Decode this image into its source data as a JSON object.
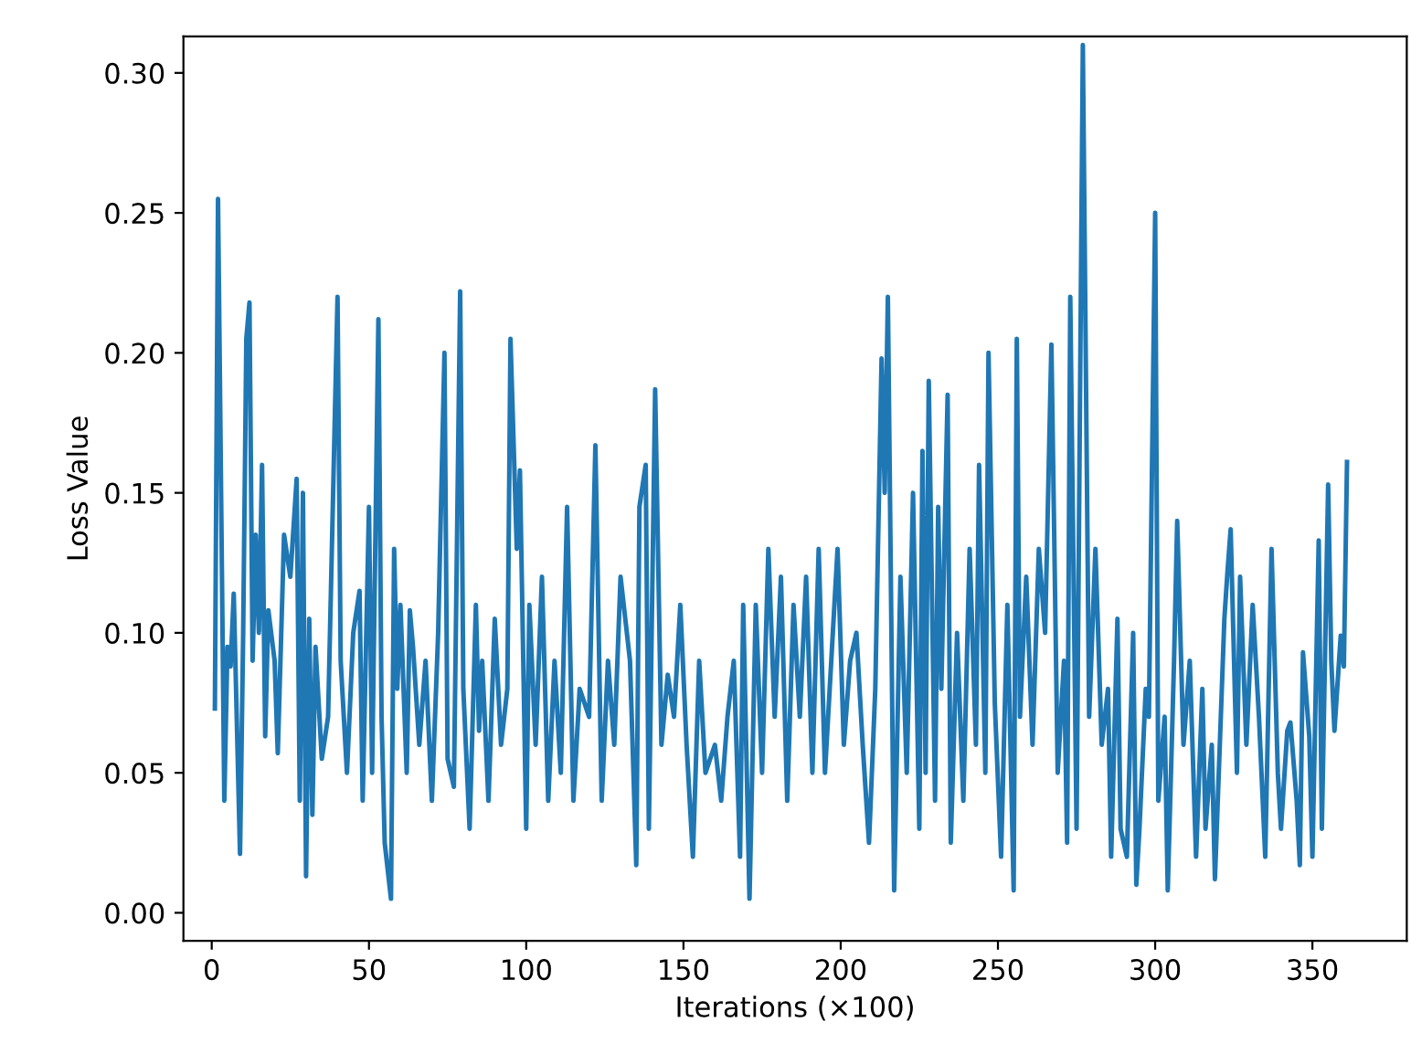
{
  "chart_data": {
    "type": "line",
    "xlabel": "Iterations (×100)",
    "ylabel": "Loss Value",
    "xlim": [
      -9,
      380
    ],
    "ylim": [
      -0.01,
      0.313
    ],
    "xticks": [
      0,
      50,
      100,
      150,
      200,
      250,
      300,
      350
    ],
    "yticks": [
      {
        "value": 0,
        "label": "0.00"
      },
      {
        "value": 0.05,
        "label": "0.05"
      },
      {
        "value": 0.1,
        "label": "0.10"
      },
      {
        "value": 0.15,
        "label": "0.15"
      },
      {
        "value": 0.2,
        "label": "0.20"
      },
      {
        "value": 0.25,
        "label": "0.25"
      },
      {
        "value": 0.3,
        "label": "0.30"
      }
    ],
    "grid": false,
    "marker": "none",
    "line_style": "solid",
    "series": [
      {
        "color": "#1f77b4",
        "x": [
          1,
          2,
          4,
          5,
          6,
          7,
          9,
          10,
          11,
          12,
          13,
          14,
          15,
          16,
          17,
          18,
          20,
          21,
          23,
          25,
          27,
          28,
          29,
          30,
          31,
          32,
          33,
          35,
          37,
          40,
          41,
          43,
          45,
          47,
          48,
          50,
          51,
          53,
          54,
          55,
          57,
          58,
          59,
          60,
          62,
          63,
          64,
          66,
          68,
          70,
          72,
          74,
          75,
          77,
          79,
          80,
          82,
          84,
          85,
          86,
          88,
          90,
          92,
          94,
          95,
          97,
          98,
          100,
          101,
          103,
          105,
          107,
          109,
          111,
          113,
          115,
          117,
          120,
          122,
          124,
          126,
          128,
          130,
          133,
          135,
          136,
          138,
          139,
          141,
          143,
          145,
          147,
          149,
          151,
          153,
          155,
          157,
          160,
          162,
          164,
          166,
          168,
          169,
          171,
          173,
          175,
          177,
          179,
          181,
          183,
          185,
          187,
          189,
          191,
          193,
          195,
          197,
          199,
          201,
          203,
          205,
          207,
          209,
          211,
          213,
          214,
          215,
          217,
          219,
          221,
          223,
          225,
          226,
          227,
          228,
          230,
          231,
          232,
          234,
          235,
          237,
          239,
          241,
          243,
          244,
          246,
          247,
          249,
          251,
          253,
          255,
          256,
          257,
          259,
          261,
          263,
          265,
          267,
          269,
          271,
          272,
          273,
          275,
          277,
          279,
          281,
          283,
          285,
          286,
          288,
          289,
          291,
          293,
          294,
          295,
          297,
          298,
          300,
          301,
          303,
          304,
          306,
          307,
          309,
          311,
          313,
          315,
          316,
          318,
          319,
          322,
          323,
          324,
          326,
          327,
          329,
          331,
          333,
          335,
          337,
          339,
          340,
          342,
          343,
          345,
          346,
          347,
          349,
          350,
          352,
          353,
          355,
          356,
          357,
          359,
          360,
          361
        ],
        "values": [
          0.073,
          0.255,
          0.04,
          0.095,
          0.088,
          0.114,
          0.021,
          0.1,
          0.205,
          0.218,
          0.09,
          0.135,
          0.1,
          0.16,
          0.063,
          0.108,
          0.09,
          0.057,
          0.135,
          0.12,
          0.155,
          0.04,
          0.15,
          0.013,
          0.105,
          0.035,
          0.095,
          0.055,
          0.07,
          0.22,
          0.09,
          0.05,
          0.1,
          0.115,
          0.04,
          0.145,
          0.05,
          0.212,
          0.07,
          0.025,
          0.005,
          0.13,
          0.08,
          0.11,
          0.05,
          0.108,
          0.095,
          0.06,
          0.09,
          0.04,
          0.1,
          0.2,
          0.055,
          0.045,
          0.222,
          0.08,
          0.03,
          0.11,
          0.065,
          0.09,
          0.04,
          0.105,
          0.06,
          0.08,
          0.205,
          0.13,
          0.158,
          0.03,
          0.11,
          0.06,
          0.12,
          0.04,
          0.09,
          0.05,
          0.145,
          0.04,
          0.08,
          0.07,
          0.167,
          0.04,
          0.09,
          0.06,
          0.12,
          0.09,
          0.017,
          0.145,
          0.16,
          0.03,
          0.187,
          0.06,
          0.085,
          0.07,
          0.11,
          0.06,
          0.02,
          0.09,
          0.05,
          0.06,
          0.04,
          0.07,
          0.09,
          0.02,
          0.11,
          0.005,
          0.11,
          0.05,
          0.13,
          0.07,
          0.12,
          0.04,
          0.11,
          0.07,
          0.12,
          0.05,
          0.13,
          0.05,
          0.09,
          0.13,
          0.06,
          0.09,
          0.1,
          0.06,
          0.025,
          0.08,
          0.198,
          0.15,
          0.22,
          0.008,
          0.12,
          0.05,
          0.15,
          0.03,
          0.165,
          0.05,
          0.19,
          0.04,
          0.145,
          0.08,
          0.185,
          0.025,
          0.1,
          0.04,
          0.13,
          0.06,
          0.16,
          0.05,
          0.2,
          0.075,
          0.02,
          0.11,
          0.008,
          0.205,
          0.07,
          0.12,
          0.06,
          0.13,
          0.1,
          0.203,
          0.05,
          0.09,
          0.025,
          0.22,
          0.03,
          0.31,
          0.07,
          0.13,
          0.06,
          0.08,
          0.02,
          0.105,
          0.03,
          0.02,
          0.1,
          0.01,
          0.03,
          0.08,
          0.07,
          0.25,
          0.04,
          0.07,
          0.008,
          0.09,
          0.14,
          0.06,
          0.09,
          0.02,
          0.08,
          0.03,
          0.06,
          0.012,
          0.105,
          0.122,
          0.137,
          0.05,
          0.12,
          0.06,
          0.11,
          0.07,
          0.02,
          0.13,
          0.05,
          0.03,
          0.065,
          0.068,
          0.04,
          0.017,
          0.093,
          0.063,
          0.02,
          0.133,
          0.03,
          0.153,
          0.09,
          0.065,
          0.099,
          0.088,
          0.161
        ]
      }
    ]
  }
}
